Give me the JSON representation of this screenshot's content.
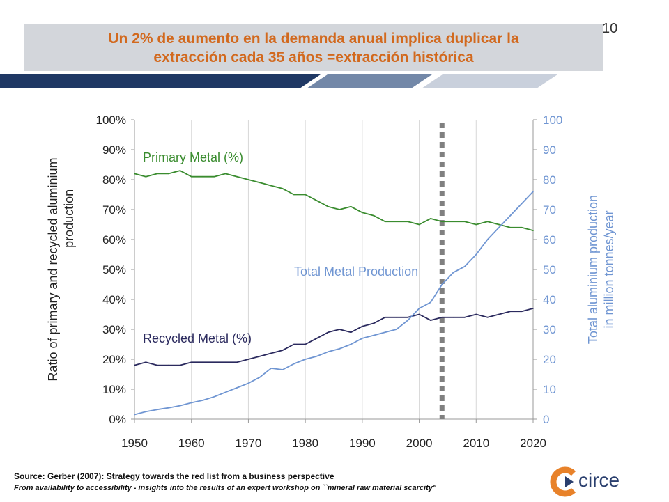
{
  "slide": {
    "page_number": "10",
    "title_line1": "Un 2% de aumento en la demanda anual implica duplicar la",
    "title_line2": "extracción cada 35 años =extracción histórica",
    "source_line1": "Source: Gerber (2007): Strategy towards the red list from a business perspective",
    "source_line2": "From availability to accessibility - insights into the results of an expert workshop on ``mineral raw material scarcity\"",
    "logo_text": "circe"
  },
  "colors": {
    "title_text": "#d2691e",
    "title_bg": "#d3d6db",
    "banner_dark": "#1f3864",
    "banner_mid": "#7388a8",
    "banner_light": "#c9d0dc",
    "primary": "#3a8c2f",
    "recycled": "#2b2a5e",
    "total": "#6f95d2",
    "marker": "#808080",
    "logo_orange": "#e8822a",
    "logo_blue": "#2a3f6e"
  },
  "chart_data": {
    "type": "line",
    "xlim": [
      1950,
      2020
    ],
    "x_ticks": [
      "1950",
      "1960",
      "1970",
      "1980",
      "1990",
      "2000",
      "2010",
      "2020"
    ],
    "ylim_left": [
      0,
      100
    ],
    "y_ticks_left": [
      "0%",
      "10%",
      "20%",
      "30%",
      "40%",
      "50%",
      "60%",
      "70%",
      "80%",
      "90%",
      "100%"
    ],
    "ylabel_left_line1": "Ratio of primary and recycled aluminium",
    "ylabel_left_line2": "production",
    "ylim_right": [
      0,
      100
    ],
    "y_ticks_right": [
      "0",
      "10",
      "20",
      "30",
      "40",
      "50",
      "60",
      "70",
      "80",
      "90",
      "100"
    ],
    "ylabel_right_line1": "Total aluminium production",
    "ylabel_right_line2": "in million tonnes/year",
    "grid": "vertical",
    "vertical_marker_year": 2004,
    "series": [
      {
        "name": "Primary Metal (%)",
        "axis": "left",
        "x": [
          1950,
          1952,
          1954,
          1956,
          1958,
          1960,
          1962,
          1964,
          1966,
          1968,
          1970,
          1972,
          1974,
          1976,
          1978,
          1980,
          1982,
          1984,
          1986,
          1988,
          1990,
          1992,
          1994,
          1996,
          1998,
          2000,
          2002,
          2004,
          2006,
          2008,
          2010,
          2012,
          2014,
          2016,
          2018,
          2020
        ],
        "values": [
          82,
          81,
          82,
          82,
          83,
          81,
          81,
          81,
          82,
          81,
          80,
          79,
          78,
          77,
          75,
          75,
          73,
          71,
          70,
          71,
          69,
          68,
          66,
          66,
          66,
          65,
          67,
          66,
          66,
          66,
          65,
          66,
          65,
          64,
          64,
          63
        ]
      },
      {
        "name": "Recycled Metal (%)",
        "axis": "left",
        "x": [
          1950,
          1952,
          1954,
          1956,
          1958,
          1960,
          1962,
          1964,
          1966,
          1968,
          1970,
          1972,
          1974,
          1976,
          1978,
          1980,
          1982,
          1984,
          1986,
          1988,
          1990,
          1992,
          1994,
          1996,
          1998,
          2000,
          2002,
          2004,
          2006,
          2008,
          2010,
          2012,
          2014,
          2016,
          2018,
          2020
        ],
        "values": [
          18,
          19,
          18,
          18,
          18,
          19,
          19,
          19,
          19,
          19,
          20,
          21,
          22,
          23,
          25,
          25,
          27,
          29,
          30,
          29,
          31,
          32,
          34,
          34,
          34,
          35,
          33,
          34,
          34,
          34,
          35,
          34,
          35,
          36,
          36,
          37
        ]
      },
      {
        "name": "Total Metal Production",
        "axis": "right",
        "x": [
          1950,
          1952,
          1954,
          1956,
          1958,
          1960,
          1962,
          1964,
          1966,
          1968,
          1970,
          1972,
          1974,
          1976,
          1978,
          1980,
          1982,
          1984,
          1986,
          1988,
          1990,
          1992,
          1994,
          1996,
          1998,
          2000,
          2002,
          2004,
          2006,
          2008,
          2010,
          2012,
          2014,
          2016,
          2018,
          2020
        ],
        "values": [
          1.5,
          2.5,
          3.2,
          3.8,
          4.5,
          5.5,
          6.3,
          7.5,
          9,
          10.5,
          12,
          14,
          17,
          16.5,
          18.5,
          20,
          21,
          22.5,
          23.5,
          25,
          27,
          28,
          29,
          30,
          33,
          37,
          39,
          45,
          49,
          51,
          55,
          60,
          64,
          68,
          72,
          76
        ]
      }
    ],
    "annotations": [
      "Primary Metal (%)",
      "Total Metal Production",
      "Recycled Metal (%)"
    ]
  }
}
